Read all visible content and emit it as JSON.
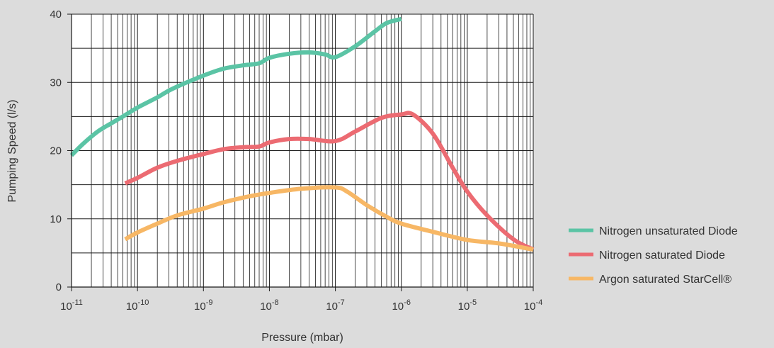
{
  "chart_data": {
    "type": "line",
    "title": "",
    "xlabel": "Pressure (mbar)",
    "ylabel": "Pumping Speed (l/s)",
    "xscale": "log",
    "xlim": [
      1e-11,
      0.0001
    ],
    "ylim": [
      0,
      40
    ],
    "x_ticks": [
      {
        "value": 1e-11,
        "base": "10",
        "exp": "-11"
      },
      {
        "value": 1e-10,
        "base": "10",
        "exp": "-10"
      },
      {
        "value": 1e-09,
        "base": "10",
        "exp": "-9"
      },
      {
        "value": 1e-08,
        "base": "10",
        "exp": "-8"
      },
      {
        "value": 1e-07,
        "base": "10",
        "exp": "-7"
      },
      {
        "value": 1e-06,
        "base": "10",
        "exp": "-6"
      },
      {
        "value": 1e-05,
        "base": "10",
        "exp": "-5"
      },
      {
        "value": 0.0001,
        "base": "10",
        "exp": "-4"
      }
    ],
    "y_ticks": [
      0,
      10,
      20,
      30,
      40
    ],
    "y_minor_grid": [
      5,
      15,
      25,
      35
    ],
    "grid": true,
    "legend_position": "right",
    "series": [
      {
        "name": "Nitrogen unsaturated Diode",
        "color": "#5bc4a5",
        "points": [
          [
            1e-11,
            19.3
          ],
          [
            1.5e-11,
            21.0
          ],
          [
            2.5e-11,
            22.8
          ],
          [
            4e-11,
            24.0
          ],
          [
            6e-11,
            25.0
          ],
          [
            1e-10,
            26.3
          ],
          [
            2e-10,
            27.8
          ],
          [
            3e-10,
            28.8
          ],
          [
            5e-10,
            29.8
          ],
          [
            1e-09,
            31.0
          ],
          [
            2e-09,
            32.0
          ],
          [
            4e-09,
            32.5
          ],
          [
            7e-09,
            32.8
          ],
          [
            1e-08,
            33.6
          ],
          [
            2e-08,
            34.2
          ],
          [
            4e-08,
            34.4
          ],
          [
            7e-08,
            34.1
          ],
          [
            1e-07,
            33.7
          ],
          [
            2e-07,
            35.3
          ],
          [
            4e-07,
            37.5
          ],
          [
            6e-07,
            38.7
          ],
          [
            1e-06,
            39.3
          ]
        ]
      },
      {
        "name": "Nitrogen saturated Diode",
        "color": "#ec6b72",
        "points": [
          [
            6.5e-11,
            15.2
          ],
          [
            1e-10,
            16.0
          ],
          [
            2e-10,
            17.5
          ],
          [
            4e-10,
            18.5
          ],
          [
            1e-09,
            19.5
          ],
          [
            2e-09,
            20.2
          ],
          [
            4e-09,
            20.5
          ],
          [
            7e-09,
            20.6
          ],
          [
            1e-08,
            21.2
          ],
          [
            2e-08,
            21.7
          ],
          [
            4e-08,
            21.7
          ],
          [
            1e-07,
            21.4
          ],
          [
            2e-07,
            22.8
          ],
          [
            5e-07,
            24.8
          ],
          [
            1e-06,
            25.3
          ],
          [
            1.5e-06,
            25.3
          ],
          [
            3e-06,
            22.5
          ],
          [
            6e-06,
            17.5
          ],
          [
            1e-05,
            14.0
          ],
          [
            2e-05,
            10.5
          ],
          [
            5e-05,
            7.0
          ],
          [
            0.0001,
            5.5
          ]
        ]
      },
      {
        "name": "Argon saturated StarCell®",
        "color": "#f7b765",
        "points": [
          [
            6.5e-11,
            7.0
          ],
          [
            1e-10,
            8.0
          ],
          [
            2e-10,
            9.3
          ],
          [
            4e-10,
            10.5
          ],
          [
            1e-09,
            11.5
          ],
          [
            2e-09,
            12.4
          ],
          [
            5e-09,
            13.3
          ],
          [
            1e-08,
            13.8
          ],
          [
            3e-08,
            14.4
          ],
          [
            1e-07,
            14.6
          ],
          [
            1.5e-07,
            14.0
          ],
          [
            3e-07,
            12.0
          ],
          [
            6e-07,
            10.3
          ],
          [
            1e-06,
            9.3
          ],
          [
            3e-06,
            8.1
          ],
          [
            1e-05,
            6.9
          ],
          [
            3e-05,
            6.4
          ],
          [
            0.0001,
            5.5
          ]
        ]
      }
    ]
  }
}
